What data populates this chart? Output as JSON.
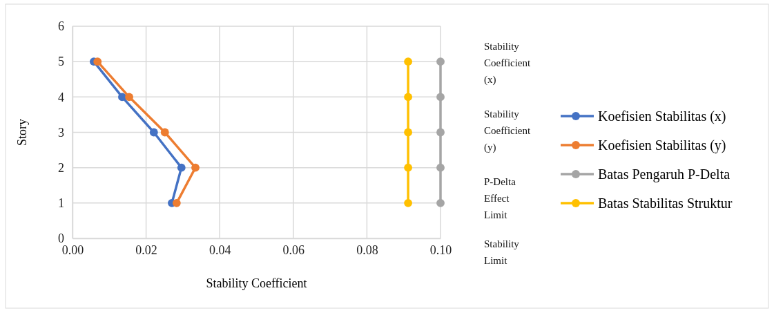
{
  "chart_data": {
    "type": "line",
    "xlabel": "Stability Coefficient",
    "ylabel": "Story",
    "xlim": [
      0,
      0.1
    ],
    "xticks": [
      {
        "value": 0,
        "label": "0.00"
      },
      {
        "value": 0.02,
        "label": "0.02"
      },
      {
        "value": 0.04,
        "label": "0.04"
      },
      {
        "value": 0.06,
        "label": "0.06"
      },
      {
        "value": 0.08,
        "label": "0.08"
      },
      {
        "value": 0.1,
        "label": "0.10"
      }
    ],
    "ylim": [
      0,
      6
    ],
    "yticks": [
      0,
      1,
      2,
      3,
      4,
      5,
      6
    ],
    "grid": true,
    "legend": "right",
    "marker": "circle",
    "line_style": "solid",
    "series": [
      {
        "name": "Koefisien Stabilitas (x)",
        "color": "#4472c4",
        "x": [
          0.0058,
          0.0135,
          0.0221,
          0.0296,
          0.027
        ],
        "values": [
          5,
          4,
          3,
          2,
          1
        ]
      },
      {
        "name": "Koefisien Stabilitas (y)",
        "color": "#ed7d31",
        "x": [
          0.0068,
          0.0154,
          0.0251,
          0.0334,
          0.0283
        ],
        "values": [
          5,
          4,
          3,
          2,
          1
        ]
      },
      {
        "name": "Batas Pengaruh P-Delta",
        "color": "#a5a5a5",
        "x": [
          0.1,
          0.1,
          0.1,
          0.1,
          0.1
        ],
        "values": [
          5,
          4,
          3,
          2,
          1
        ]
      },
      {
        "name": "Batas Stabilitas Struktur",
        "color": "#ffc000",
        "x": [
          0.0912,
          0.0912,
          0.0912,
          0.0912,
          0.0912
        ],
        "values": [
          5,
          4,
          3,
          2,
          1
        ]
      }
    ],
    "annotations": [
      "Stability Coefficient (x)",
      "Stability Coefficient (y)",
      "P-Delta Effect Limit",
      "Stability Limit"
    ]
  }
}
